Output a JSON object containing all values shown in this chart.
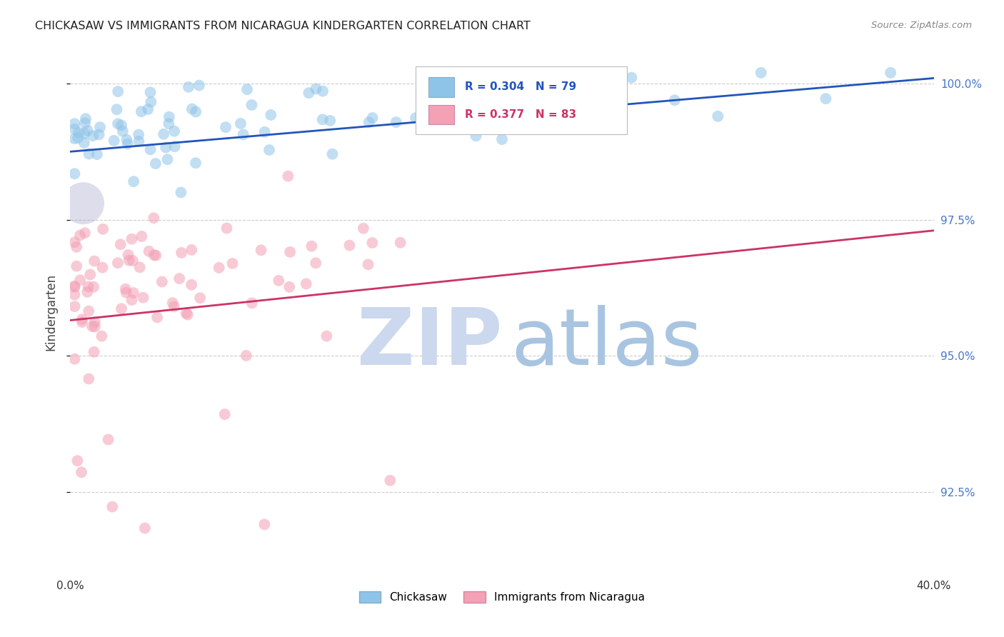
{
  "title": "CHICKASAW VS IMMIGRANTS FROM NICARAGUA KINDERGARTEN CORRELATION CHART",
  "source": "Source: ZipAtlas.com",
  "ylabel": "Kindergarten",
  "ylabel_right_labels": [
    "92.5%",
    "95.0%",
    "97.5%",
    "100.0%"
  ],
  "ylabel_right_values": [
    0.925,
    0.95,
    0.975,
    1.0
  ],
  "xlim": [
    0.0,
    0.4
  ],
  "ylim": [
    0.91,
    1.006
  ],
  "legend1_label": "Chickasaw",
  "legend2_label": "Immigrants from Nicaragua",
  "r1": 0.304,
  "n1": 79,
  "r2": 0.377,
  "n2": 83,
  "color_blue": "#8ec4e8",
  "color_pink": "#f4a0b5",
  "line_blue": "#2255bb",
  "line_pink": "#cc3366",
  "blue_line_x": [
    0.0,
    0.4
  ],
  "blue_line_y": [
    0.9875,
    1.001
  ],
  "pink_line_x": [
    0.0,
    0.4
  ],
  "pink_line_y": [
    0.9565,
    0.973
  ],
  "watermark_zip_color": "#ccd8ee",
  "watermark_atlas_color": "#a8c4e0",
  "bg_color": "#ffffff",
  "grid_color": "#cccccc",
  "title_color": "#222222",
  "source_color": "#888888",
  "ylabel_color": "#444444",
  "right_tick_color": "#4477cc"
}
